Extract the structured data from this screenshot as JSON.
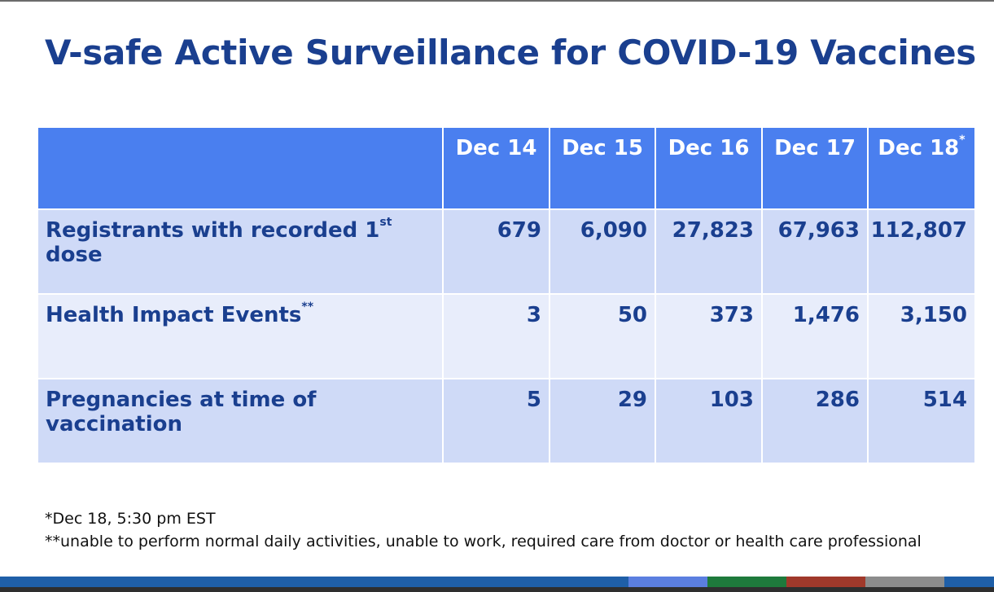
{
  "title": "V-safe Active Surveillance for COVID-19 Vaccines",
  "table": {
    "columns": [
      {
        "label": "Dec 14",
        "mark": ""
      },
      {
        "label": "Dec 15",
        "mark": ""
      },
      {
        "label": "Dec 16",
        "mark": ""
      },
      {
        "label": "Dec 17",
        "mark": ""
      },
      {
        "label": "Dec 18",
        "mark": "*"
      }
    ],
    "rows": [
      {
        "label_pre": "Registrants with recorded 1",
        "label_sup": "st",
        "label_post": " dose",
        "values": [
          "679",
          "6,090",
          "27,823",
          "67,963",
          "112,807"
        ]
      },
      {
        "label_pre": "Health Impact Events",
        "label_sup": "**",
        "label_post": "",
        "values": [
          "3",
          "50",
          "373",
          "1,476",
          "3,150"
        ]
      },
      {
        "label_pre": "Pregnancies at time of vaccination",
        "label_sup": "",
        "label_post": "",
        "values": [
          "5",
          "29",
          "103",
          "286",
          "514"
        ]
      }
    ]
  },
  "footnotes": [
    "*Dec 18, 5:30 pm EST",
    "**unable to perform normal daily activities, unable to work, required care from doctor or health care professional"
  ],
  "colors": {
    "title": "#1a3f8f",
    "header_bg": "#4a7fef",
    "row_dark": "#cfdaf7",
    "row_light": "#e8edfb",
    "footer_bar": [
      "#1f5fa8",
      "#5b7fe0",
      "#1e7a3c",
      "#a0392b",
      "#8c8c8c",
      "#1f5fa8"
    ]
  }
}
